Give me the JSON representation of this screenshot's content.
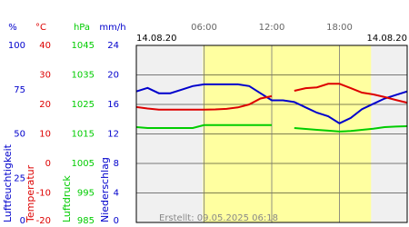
{
  "chart_data": {
    "type": "line",
    "date_left": "14.08.20",
    "date_right": "14.08.20",
    "footer": "Erstellt: 09.05.2025 06:18",
    "xlim": [
      0,
      24
    ],
    "xticks": [
      {
        "value": 6,
        "label": "06:00"
      },
      {
        "value": 12,
        "label": "12:00"
      },
      {
        "value": 18,
        "label": "18:00"
      }
    ],
    "daylight": [
      5.9,
      20.8
    ],
    "x": [
      0,
      1,
      2,
      3,
      4,
      5,
      6,
      7,
      8,
      9,
      10,
      11,
      12,
      13,
      14,
      15,
      16,
      17,
      18,
      19,
      20,
      21,
      22,
      23,
      24
    ],
    "axes": [
      {
        "unit": "%",
        "label": "Luftfeuchtigkeit",
        "color": "#0000cc",
        "ylim": [
          0,
          100
        ],
        "yticks": [
          0,
          25,
          50,
          75,
          100
        ],
        "values": [
          74,
          76,
          73,
          73,
          75,
          77,
          78,
          78,
          78,
          78,
          77,
          73,
          69,
          69,
          68,
          65,
          62,
          60,
          56,
          59,
          64,
          67,
          70,
          72,
          74
        ]
      },
      {
        "unit": "°C",
        "label": "Temperatur",
        "color": "#dd0000",
        "ylim": [
          -20,
          40
        ],
        "yticks": [
          -20,
          -10,
          0,
          10,
          20,
          30,
          40
        ],
        "values": [
          19.1,
          18.6,
          18.2,
          18.2,
          18.2,
          18.2,
          18.2,
          18.3,
          18.5,
          19,
          20,
          22,
          22.8,
          null,
          24.6,
          25.5,
          25.8,
          27,
          27,
          25.5,
          24,
          23.4,
          22.5,
          21.5,
          20.6
        ]
      },
      {
        "unit": "hPa",
        "label": "Luftdruck",
        "color": "#00cc00",
        "ylim": [
          985,
          1045
        ],
        "yticks": [
          985,
          995,
          1005,
          1015,
          1025,
          1035,
          1045
        ],
        "values": [
          1017.3,
          1017,
          1017,
          1017,
          1017,
          1017,
          1018,
          1018,
          1018,
          1018,
          1018,
          1018,
          1018,
          null,
          1017,
          1016.7,
          1016.4,
          1016.1,
          1015.8,
          1016,
          1016.4,
          1016.8,
          1017.3,
          1017.5,
          1017.6
        ]
      },
      {
        "unit": "mm/h",
        "label": "Niederschlag",
        "color": "#0000cc",
        "ylim": [
          0,
          24
        ],
        "yticks": [
          0,
          4,
          8,
          12,
          16,
          20,
          24
        ]
      }
    ]
  }
}
